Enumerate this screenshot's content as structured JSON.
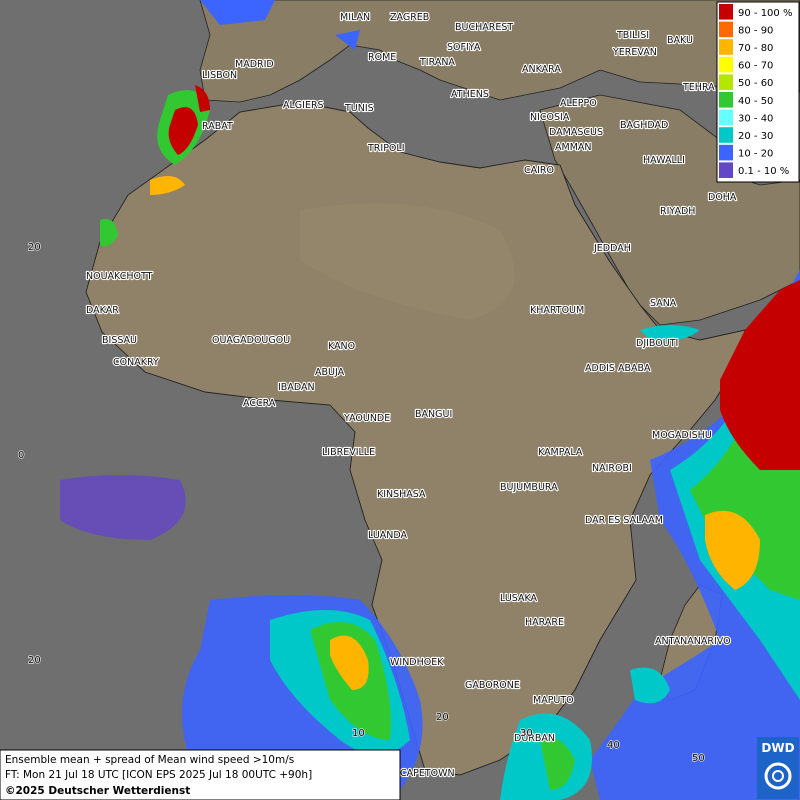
{
  "cities": [
    "MILAN",
    "ZAGREB",
    "BUCHAREST",
    "BAKU",
    "TBILISI",
    "YEREVAN",
    "MADRID",
    "ROME",
    "SOFIYA",
    "TIRANA",
    "ANKARA",
    "LISBON",
    "TEHRA",
    "ATHENS",
    "ALGIERS",
    "TUNIS",
    "ALEPPO",
    "RABAT",
    "NICOSIA",
    "BAGHDAD",
    "DAMASCUS",
    "TRIPOLI",
    "AMMAN",
    "HAWALLI",
    "CAIRO",
    "DOHA",
    "RIYADH",
    "JEDDAH",
    "NOUAKCHOTT",
    "SANA",
    "DAKAR",
    "KHARTOUM",
    "BISSAU",
    "DJIBOUTI",
    "OUAGADOUGOU",
    "KANO",
    "CONAKRY",
    "ABUJA",
    "ADDIS ABABA",
    "IBADAN",
    "ACCRA",
    "YAOUNDE",
    "BANGUI",
    "MOGADISHU",
    "LIBREVILLE",
    "KAMPALA",
    "NAIROBI",
    "KINSHASA",
    "BUJUMBURA",
    "DAR ES SALAAM",
    "LUANDA",
    "LUSAKA",
    "HARARE",
    "ANTANANARIVO",
    "WINDHOEK",
    "GABORONE",
    "MAPUTO",
    "DURBAN",
    "CAPETOWN"
  ],
  "grid_labels": {
    "lat": [
      "20",
      "0",
      "20"
    ],
    "lon": [
      "10",
      "20",
      "30",
      "40",
      "50"
    ]
  },
  "legend": [
    {
      "label": "90 - 100 %",
      "color": "#c40000"
    },
    {
      "label": "80 - 90",
      "color": "#ff6a00"
    },
    {
      "label": "70 - 80",
      "color": "#ffb400"
    },
    {
      "label": "60 - 70",
      "color": "#ffff00"
    },
    {
      "label": "50 - 60",
      "color": "#b4e600"
    },
    {
      "label": "40 - 50",
      "color": "#32c832"
    },
    {
      "label": "30 - 40",
      "color": "#64ffff"
    },
    {
      "label": "20 - 30",
      "color": "#00c8c8"
    },
    {
      "label": "10 - 20",
      "color": "#3c64ff"
    },
    {
      "label": "0.1 - 10 %",
      "color": "#6446c8"
    }
  ],
  "caption": [
    "Ensemble mean + spread of Mean wind speed >10m/s",
    "FT: Mon 21 Jul 18 UTC [ICON EPS 2025 Jul 18 00UTC +90h]",
    "©2025 Deutscher Wetterdienst"
  ],
  "logo": "DWD"
}
